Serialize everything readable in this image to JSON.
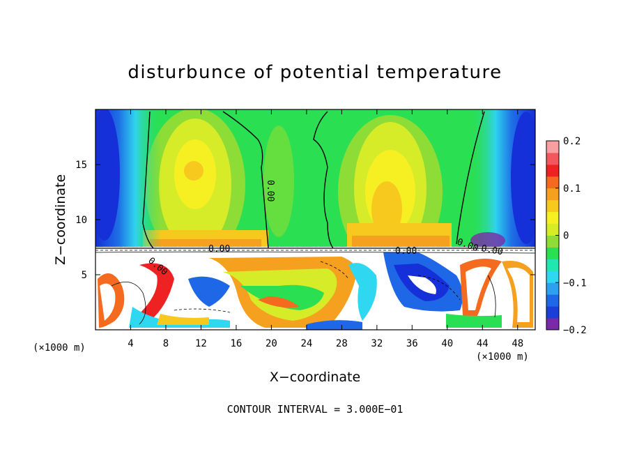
{
  "chart_data": {
    "type": "heatmap",
    "title": "disturbunce of potential temperature",
    "xlabel": "X−coordinate",
    "ylabel": "Z−coordinate",
    "x_unit": "(×1000 m)",
    "z_unit": "(×1000 m)",
    "footer": "CONTOUR INTERVAL = 3.000E−01",
    "xlim": [
      0,
      50
    ],
    "zlim": [
      0,
      20
    ],
    "x_ticks": [
      4,
      8,
      12,
      16,
      20,
      24,
      28,
      32,
      36,
      40,
      44,
      48
    ],
    "x_tick_labels": [
      "4",
      "8",
      "12",
      "16",
      "20",
      "24",
      "28",
      "32",
      "36",
      "40",
      "44",
      "48"
    ],
    "z_ticks": [
      5,
      10,
      15
    ],
    "z_tick_labels": [
      "5",
      "10",
      "15"
    ],
    "colorbar": {
      "range": [
        -0.2,
        0.2
      ],
      "ticks": [
        0.2,
        0.1,
        0,
        -0.1,
        -0.2
      ],
      "tick_labels": [
        "0.2",
        "0.1",
        "0",
        "−0.1",
        "−0.2"
      ],
      "colors": [
        "#7a2aa8",
        "#1a3fd6",
        "#1e67e6",
        "#2ea0f0",
        "#2fd8f0",
        "#22e6b0",
        "#2adf52",
        "#8edd36",
        "#d6ec28",
        "#f6f023",
        "#f7c91f",
        "#f6a01f",
        "#f46b1f",
        "#ee2222",
        "#f2575c",
        "#f8a0a0"
      ]
    },
    "contour_labels": [
      "0.00",
      "0.00",
      "0.00",
      "0.00",
      "0.00",
      "0.00"
    ],
    "contour_interval": 0.3
  }
}
